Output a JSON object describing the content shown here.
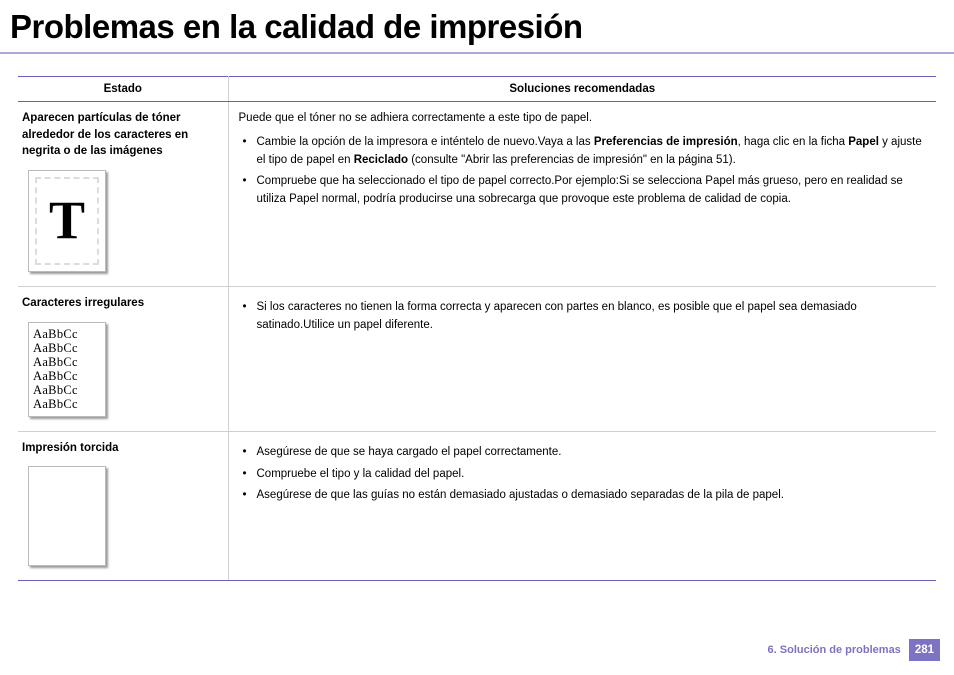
{
  "title": "Problemas en la calidad de impresión",
  "columns": {
    "estado": "Estado",
    "sol": "Soluciones recomendadas"
  },
  "rows": [
    {
      "estado_title": "Aparecen partículas de tóner alrededor de los caracteres en negrita o de las imágenes",
      "fig_letter": "T",
      "intro": "Puede que el tóner no se adhiera correctamente a este tipo de papel.",
      "b1_a": "Cambie la opción de la impresora e inténtelo de nuevo.Vaya a las ",
      "b1_strong1": "Preferencias de impresión",
      "b1_b": ", haga clic en la ficha ",
      "b1_strong2": "Papel",
      "b1_c": " y ajuste el tipo de papel en ",
      "b1_strong3": "Reciclado",
      "b1_d": " (consulte \"Abrir las preferencias de impresión\" en la página 51).",
      "b2": "Compruebe que ha seleccionado el tipo de papel correcto.Por ejemplo:Si se selecciona Papel más grueso, pero en realidad se utiliza Papel normal, podría producirse una sobrecarga que provoque este problema de calidad de copia."
    },
    {
      "estado_title": "Caracteres irregulares",
      "char_sample": "AaBbCc",
      "b1": "Si los caracteres no tienen la forma correcta y aparecen con partes en blanco, es posible que el papel sea demasiado satinado.Utilice un papel diferente."
    },
    {
      "estado_title": "Impresión torcida",
      "b1": "Asegúrese de que se haya cargado el papel correctamente.",
      "b2": "Compruebe el tipo y la calidad del papel.",
      "b3": "Asegúrese de que las guías no están demasiado ajustadas o demasiado separadas de la pila de papel."
    }
  ],
  "footer": {
    "section": "6.  Solución de problemas",
    "page": "281"
  }
}
